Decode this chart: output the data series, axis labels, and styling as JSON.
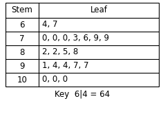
{
  "stems": [
    "6",
    "7",
    "8",
    "9",
    "10"
  ],
  "leaves": [
    "4, 7",
    "0, 0, 0, 3, 6, 9, 9",
    "2, 2, 5, 8",
    "1, 4, 4, 7, 7",
    "0, 0, 0"
  ],
  "header_stem": "Stem",
  "header_leaf": "Leaf",
  "key_text": "Key  6|4 = 64",
  "bg_color": "#ffffff",
  "border_color": "#000000",
  "font_size": 8.5,
  "header_font_size": 8.5
}
